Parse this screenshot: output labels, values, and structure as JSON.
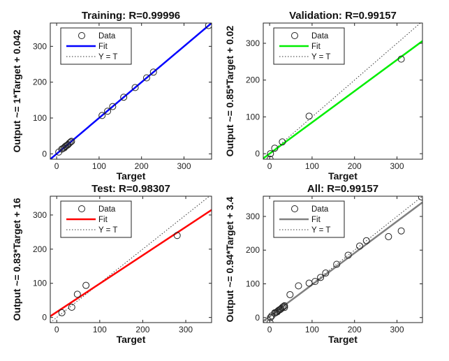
{
  "chart_data": [
    {
      "type": "scatter",
      "title": "Training: R=0.99996",
      "xlabel": "Target",
      "ylabel": "Output ~= 1*Target + 0.042",
      "xlim": [
        -15,
        365
      ],
      "ylim": [
        -15,
        365
      ],
      "xticks": [
        0,
        100,
        200,
        300
      ],
      "yticks": [
        0,
        100,
        200,
        300
      ],
      "fit": {
        "slope": 1,
        "intercept": 0.042,
        "color": "#0000ff",
        "label": "Fit"
      },
      "identity_label": "Y = T",
      "data_label": "Data",
      "points": [
        [
          5,
          5
        ],
        [
          12,
          13
        ],
        [
          15,
          15
        ],
        [
          18,
          17
        ],
        [
          20,
          20
        ],
        [
          22,
          22
        ],
        [
          25,
          24
        ],
        [
          27,
          26
        ],
        [
          30,
          30
        ],
        [
          33,
          33
        ],
        [
          35,
          35
        ],
        [
          107,
          107
        ],
        [
          120,
          119
        ],
        [
          132,
          132
        ],
        [
          158,
          158
        ],
        [
          185,
          185
        ],
        [
          212,
          212
        ],
        [
          228,
          228
        ],
        [
          358,
          358
        ]
      ]
    },
    {
      "type": "scatter",
      "title": "Validation: R=0.99157",
      "xlabel": "Target",
      "ylabel": "Output ~= 0.85*Target + 0.02",
      "xlim": [
        -15,
        360
      ],
      "ylim": [
        -15,
        355
      ],
      "xticks": [
        0,
        100,
        200,
        300
      ],
      "yticks": [
        0,
        100,
        200,
        300
      ],
      "fit": {
        "slope": 0.85,
        "intercept": 0.02,
        "color": "#00ee00",
        "label": "Fit"
      },
      "identity_label": "Y = T",
      "data_label": "Data",
      "points": [
        [
          1,
          -15
        ],
        [
          2,
          0
        ],
        [
          12,
          15
        ],
        [
          30,
          32
        ],
        [
          93,
          102
        ],
        [
          310,
          257
        ]
      ]
    },
    {
      "type": "scatter",
      "title": "Test: R=0.98307",
      "xlabel": "Target",
      "ylabel": "Output ~= 0.83*Target + 16",
      "xlim": [
        -15,
        360
      ],
      "ylim": [
        -15,
        355
      ],
      "xticks": [
        0,
        100,
        200,
        300
      ],
      "yticks": [
        0,
        100,
        200,
        300
      ],
      "fit": {
        "slope": 0.83,
        "intercept": 16,
        "color": "#ff0000",
        "label": "Fit"
      },
      "identity_label": "Y = T",
      "data_label": "Data",
      "points": [
        [
          12,
          14
        ],
        [
          35,
          30
        ],
        [
          48,
          68
        ],
        [
          68,
          94
        ],
        [
          280,
          240
        ]
      ]
    },
    {
      "type": "scatter",
      "title": "All: R=0.99157",
      "xlabel": "Target",
      "ylabel": "Output ~= 0.94*Target + 3.4",
      "xlim": [
        -15,
        360
      ],
      "ylim": [
        -15,
        360
      ],
      "xticks": [
        0,
        100,
        200,
        300
      ],
      "yticks": [
        0,
        100,
        200,
        300
      ],
      "fit": {
        "slope": 0.94,
        "intercept": 3.4,
        "color": "#808080",
        "label": "Fit"
      },
      "identity_label": "Y = T",
      "data_label": "Data",
      "points": [
        [
          1,
          -15
        ],
        [
          2,
          0
        ],
        [
          5,
          5
        ],
        [
          12,
          13
        ],
        [
          12,
          14
        ],
        [
          15,
          15
        ],
        [
          18,
          17
        ],
        [
          20,
          20
        ],
        [
          22,
          22
        ],
        [
          25,
          24
        ],
        [
          27,
          26
        ],
        [
          30,
          30
        ],
        [
          33,
          33
        ],
        [
          35,
          35
        ],
        [
          35,
          30
        ],
        [
          48,
          68
        ],
        [
          68,
          94
        ],
        [
          93,
          102
        ],
        [
          107,
          107
        ],
        [
          120,
          119
        ],
        [
          132,
          132
        ],
        [
          158,
          158
        ],
        [
          185,
          185
        ],
        [
          212,
          212
        ],
        [
          228,
          228
        ],
        [
          280,
          240
        ],
        [
          310,
          257
        ],
        [
          358,
          358
        ]
      ]
    }
  ]
}
